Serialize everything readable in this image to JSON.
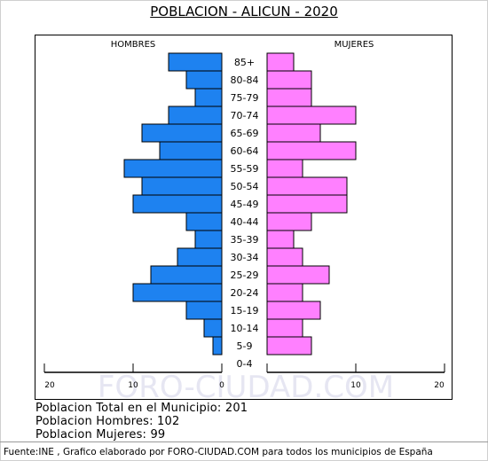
{
  "title": "POBLACION - ALICUN - 2020",
  "chart_data": {
    "type": "bar",
    "orientation": "horizontal-pyramid",
    "left_label": "HOMBRES",
    "right_label": "MUJERES",
    "categories": [
      "85+",
      "80-84",
      "75-79",
      "70-74",
      "65-69",
      "60-64",
      "55-59",
      "50-54",
      "45-49",
      "40-44",
      "35-39",
      "30-34",
      "25-29",
      "20-24",
      "15-19",
      "10-14",
      "5-9",
      "0-4"
    ],
    "series": [
      {
        "name": "HOMBRES",
        "color": "#1e82f0",
        "values": [
          6,
          4,
          3,
          6,
          9,
          7,
          11,
          9,
          10,
          4,
          3,
          5,
          8,
          10,
          4,
          2,
          1,
          0
        ]
      },
      {
        "name": "MUJERES",
        "color": "#ff80ff",
        "values": [
          3,
          5,
          5,
          10,
          6,
          10,
          4,
          9,
          9,
          5,
          3,
          4,
          7,
          4,
          6,
          4,
          5,
          0
        ]
      }
    ],
    "x_ticks": [
      "20",
      "10",
      "0",
      "10",
      "20"
    ],
    "xlim": [
      -20,
      20
    ]
  },
  "watermark": "FORO-CIUDAD.COM",
  "stats": {
    "total": "Poblacion Total en el Municipio: 201",
    "hombres": "Poblacion Hombres: 102",
    "mujeres": "Poblacion Mujeres: 99"
  },
  "footer": "Fuente:INE , Grafico elaborado por FORO-CIUDAD.COM para todos los municipios de España"
}
